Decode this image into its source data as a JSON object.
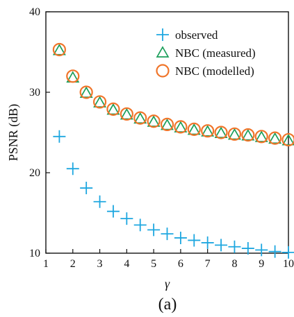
{
  "chart_data": {
    "type": "scatter",
    "panel_label": "(a)",
    "xlabel": "γ",
    "ylabel": "PSNR (dB)",
    "xlim": [
      1,
      10
    ],
    "ylim": [
      10,
      40
    ],
    "xticks": [
      1,
      2,
      3,
      4,
      5,
      6,
      7,
      8,
      9,
      10
    ],
    "yticks": [
      10,
      20,
      30,
      40
    ],
    "grid": false,
    "legend_position": "top-right",
    "x": [
      1.5,
      2.0,
      2.5,
      3.0,
      3.5,
      4.0,
      4.5,
      5.0,
      5.5,
      6.0,
      6.5,
      7.0,
      7.5,
      8.0,
      8.5,
      9.0,
      9.5,
      10.0
    ],
    "series": [
      {
        "name": "observed",
        "marker": "plus",
        "color": "#1ea7e0",
        "values": [
          24.5,
          20.5,
          18.1,
          16.4,
          15.2,
          14.3,
          13.5,
          12.9,
          12.4,
          11.9,
          11.6,
          11.3,
          11.0,
          10.8,
          10.6,
          10.4,
          10.2,
          10.1
        ]
      },
      {
        "name": "NBC (measured)",
        "marker": "triangle",
        "color": "#1b9e5a",
        "values": [
          35.2,
          31.8,
          29.9,
          28.7,
          27.8,
          27.2,
          26.7,
          26.3,
          25.9,
          25.6,
          25.3,
          25.1,
          24.9,
          24.7,
          24.6,
          24.4,
          24.2,
          24.0
        ]
      },
      {
        "name": "NBC (modelled)",
        "marker": "circle",
        "color": "#f0752a",
        "values": [
          35.3,
          32.0,
          30.0,
          28.8,
          27.9,
          27.3,
          26.8,
          26.4,
          26.0,
          25.7,
          25.4,
          25.2,
          25.0,
          24.8,
          24.7,
          24.5,
          24.3,
          24.1
        ]
      }
    ]
  }
}
